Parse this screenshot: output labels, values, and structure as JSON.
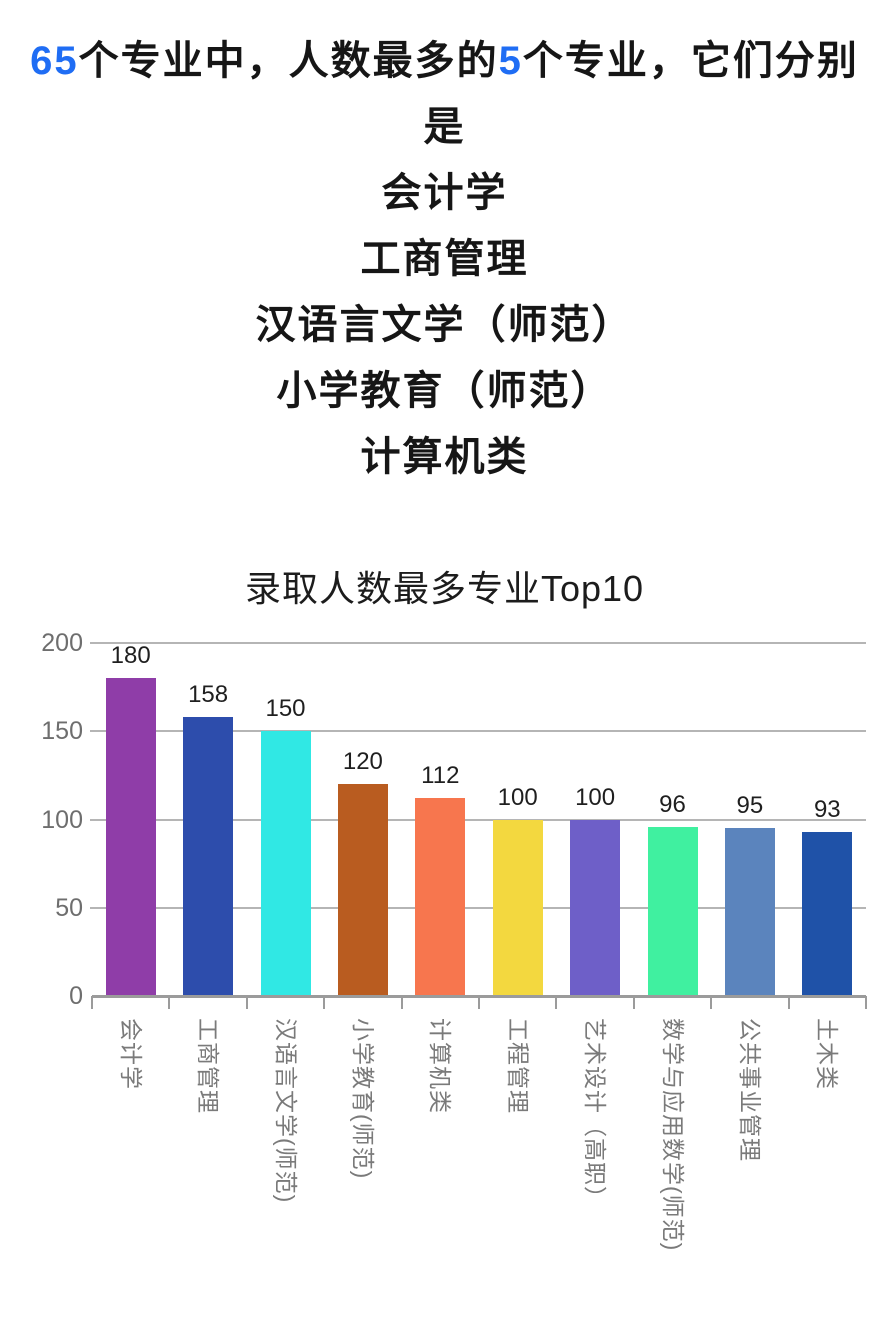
{
  "header": {
    "highlight_1": "65",
    "segment_1": "个专业中，人数最多的",
    "highlight_2": "5",
    "segment_2": "个专业，它们分别",
    "line_2": "是",
    "top_majors": [
      "会计学",
      "工商管理",
      "汉语言文学（师范）",
      "小学教育（师范）",
      "计算机类"
    ],
    "highlight_color": "#1f6df4",
    "text_color": "#161616"
  },
  "chart_data": {
    "type": "bar",
    "title": "录取人数最多专业Top10",
    "categories": [
      "会计学",
      "工商管理",
      "汉语言文学(师范)",
      "小学教育(师范)",
      "计算机类",
      "工程管理",
      "艺术设计（高职）",
      "数学与应用数学(师范)",
      "公共事业管理",
      "土木类"
    ],
    "values": [
      180,
      158,
      150,
      120,
      112,
      100,
      100,
      96,
      95,
      93
    ],
    "bar_colors": [
      "#8f3da8",
      "#2d4dac",
      "#30e8e4",
      "#b95c20",
      "#f7764e",
      "#f3d83f",
      "#6e5fc8",
      "#40f0a0",
      "#5b84bd",
      "#1f52a8"
    ],
    "xlabel": "",
    "ylabel": "",
    "ylim": [
      0,
      200
    ],
    "yticks": [
      0,
      50,
      100,
      150,
      200
    ],
    "grid": true,
    "value_labels": true,
    "legend": "none"
  },
  "colors": {
    "background": "#ffffff",
    "title_color": "#1c1c1c",
    "axis_text": "#6e6e6e",
    "gridline": "#b5b5b5",
    "axis_line": "#9b9b9b",
    "category_label": "#7a7a7a",
    "value_label": "#1f1f1f"
  }
}
